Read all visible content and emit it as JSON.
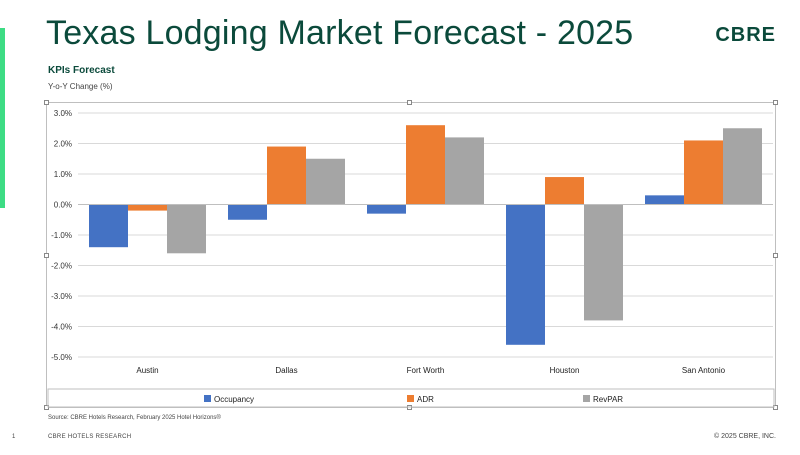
{
  "slide": {
    "title": "Texas Lodging Market Forecast - 2025",
    "logo": "CBRE",
    "subtitle": "KPIs Forecast",
    "ylabel": "Y-o-Y Change (%)",
    "source": "Source: CBRE Hotels Research, February 2025 Hotel Horizons®",
    "page_number": "1",
    "footer_left": "CBRE HOTELS RESEARCH",
    "footer_right": "© 2025 CBRE, INC.",
    "accent_color": "#3ddc84",
    "title_color": "#0b4a3b"
  },
  "chart_data": {
    "type": "bar",
    "categories": [
      "Austin",
      "Dallas",
      "Fort Worth",
      "Houston",
      "San Antonio"
    ],
    "series": [
      {
        "name": "Occupancy",
        "color": "#4472c4",
        "values": [
          -1.4,
          -0.5,
          -0.3,
          -4.6,
          0.3
        ]
      },
      {
        "name": "ADR",
        "color": "#ed7d31",
        "values": [
          -0.2,
          1.9,
          2.6,
          0.9,
          2.1
        ]
      },
      {
        "name": "RevPAR",
        "color": "#a5a5a5",
        "values": [
          -1.6,
          1.5,
          2.2,
          -3.8,
          2.5
        ]
      }
    ],
    "ylim": [
      -5.0,
      3.0
    ],
    "yticks": [
      3.0,
      2.0,
      1.0,
      0.0,
      -1.0,
      -2.0,
      -3.0,
      -4.0,
      -5.0
    ],
    "ytick_labels": [
      "3.0%",
      "2.0%",
      "1.0%",
      "0.0%",
      "-1.0%",
      "-2.0%",
      "-3.0%",
      "-4.0%",
      "-5.0%"
    ],
    "grid": true,
    "legend_position": "bottom"
  }
}
